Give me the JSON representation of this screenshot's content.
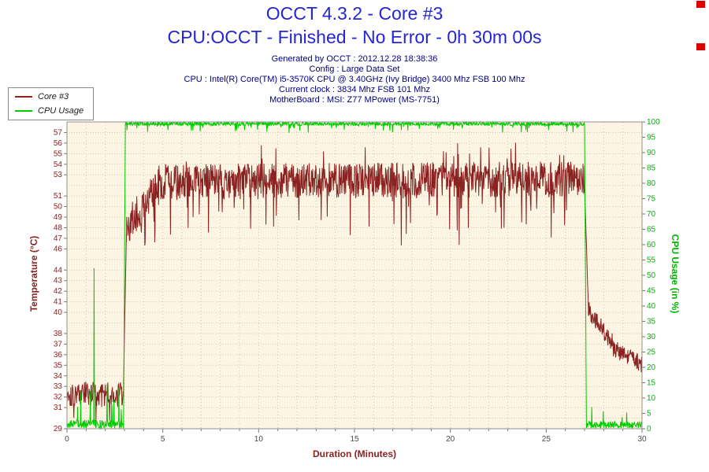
{
  "header": {
    "title": "OCCT 4.3.2 - Core #3",
    "subtitle": "CPU:OCCT - Finished - No Error - 0h 30m 00s"
  },
  "info_lines": [
    "Generated by OCCT : 2012.12.28 18:38:36",
    "Config : Large Data Set",
    "CPU : Intel(R) Core(TM) i5-3570K CPU @ 3.40GHz (Ivy Bridge) 3400 Mhz FSB 100 Mhz",
    "Current clock : 3834 Mhz FSB 101 Mhz",
    "MotherBoard : MSI: Z77 MPower (MS-7751)"
  ],
  "colors": {
    "title_blue": "#2424d8",
    "info_navy": "#00007f",
    "temp_maroon": "#8b2222",
    "cpu_green": "#00b400",
    "tick_gray": "#4a4a4a",
    "marker_red": "#dd0000"
  },
  "chart_data": {
    "type": "line",
    "title": "OCCT 4.3.2 - Core #3",
    "xlabel": "Duration (Minutes)",
    "x_range": [
      0,
      30
    ],
    "x_major_ticks": [
      0,
      5,
      10,
      15,
      20,
      25,
      30
    ],
    "x_minor_step": 1,
    "grid": true,
    "plot_bg": "#fcf5e3",
    "grid_color": "#d6cbae",
    "border_color": "#909090",
    "left_axis": {
      "label": "Temperature (°C)",
      "range": [
        29,
        58
      ],
      "ticks": [
        29,
        31,
        32,
        33,
        34,
        35,
        36,
        37,
        38,
        40,
        41,
        42,
        43,
        44,
        46,
        47,
        48,
        49,
        50,
        51,
        53,
        54,
        55,
        56,
        57
      ],
      "color": "#8b2222"
    },
    "right_axis": {
      "label": "CPU Usage (in %)",
      "range": [
        0,
        100
      ],
      "ticks": [
        0,
        5,
        10,
        15,
        20,
        25,
        30,
        35,
        40,
        45,
        50,
        55,
        60,
        65,
        70,
        75,
        80,
        85,
        90,
        95,
        100
      ],
      "color": "#00b400"
    },
    "legend": [
      {
        "label": "Core #3",
        "color": "#8b2222"
      },
      {
        "label": "CPU Usage",
        "color": "#00cc00"
      }
    ],
    "series": [
      {
        "name": "Core #3",
        "axis": "left",
        "color": "#8b2222",
        "summary": "Idle ~31-34°C for first 3 min (dips to 29), jumps to ~48°C at 3 min, noisy plateau ~50-55°C until 27 min with dips to ~46-48, then drops to ~40°C and cools to ~35°C by 30 min",
        "segments": [
          {
            "t0": 0.0,
            "t1": 2.95,
            "v0": 32.3,
            "v1": 32.2,
            "noise": 1.2,
            "spikes": [
              {
                "prob": 0.035,
                "min": -3.2,
                "max": -1.8
              }
            ]
          },
          {
            "t0": 2.95,
            "t1": 3.1,
            "v0": 33.0,
            "v1": 47.5,
            "noise": 0.4
          },
          {
            "t0": 3.1,
            "t1": 4.6,
            "v0": 48.0,
            "v1": 51.8,
            "noise": 1.7,
            "spikes": [
              {
                "prob": 0.07,
                "min": -4.5,
                "max": -2.0
              }
            ]
          },
          {
            "t0": 4.6,
            "t1": 27.0,
            "v0": 52.3,
            "v1": 52.6,
            "noise": 1.7,
            "spikes": [
              {
                "prob": 0.055,
                "min": -5.0,
                "max": -2.2
              },
              {
                "prob": 0.04,
                "min": 1.0,
                "max": 2.2
              }
            ]
          },
          {
            "t0": 27.0,
            "t1": 27.2,
            "v0": 52.0,
            "v1": 40.6,
            "noise": 0.3
          },
          {
            "t0": 27.2,
            "t1": 28.5,
            "v0": 40.3,
            "v1": 37.0,
            "noise": 0.9
          },
          {
            "t0": 28.5,
            "t1": 30.0,
            "v0": 36.6,
            "v1": 35.1,
            "noise": 0.8
          }
        ]
      },
      {
        "name": "CPU Usage",
        "axis": "right",
        "color": "#00cc00",
        "summary": "~0-5% idle with spikes up to ~50% before 3 min, 99-100% load from 3 to 27 min, back to ~0-3% with small spikes after 27 min",
        "segments": [
          {
            "t0": 0.0,
            "t1": 2.95,
            "v0": 1.5,
            "v1": 1.5,
            "noise": 1.4,
            "spikes": [
              {
                "prob": 0.05,
                "min": 3,
                "max": 12
              },
              {
                "prob": 0.012,
                "min": 20,
                "max": 52
              }
            ]
          },
          {
            "t0": 2.95,
            "t1": 3.05,
            "v0": 2.0,
            "v1": 99.5,
            "noise": 0.2
          },
          {
            "t0": 3.05,
            "t1": 27.0,
            "v0": 99.4,
            "v1": 99.4,
            "noise": 0.6,
            "spikes": [
              {
                "prob": 0.05,
                "min": -2.5,
                "max": -0.8
              }
            ]
          },
          {
            "t0": 27.0,
            "t1": 27.1,
            "v0": 99.0,
            "v1": 1.5,
            "noise": 0.2
          },
          {
            "t0": 27.1,
            "t1": 30.0,
            "v0": 1.3,
            "v1": 1.3,
            "noise": 1.1,
            "spikes": [
              {
                "prob": 0.05,
                "min": 2,
                "max": 7
              }
            ]
          }
        ]
      }
    ]
  }
}
